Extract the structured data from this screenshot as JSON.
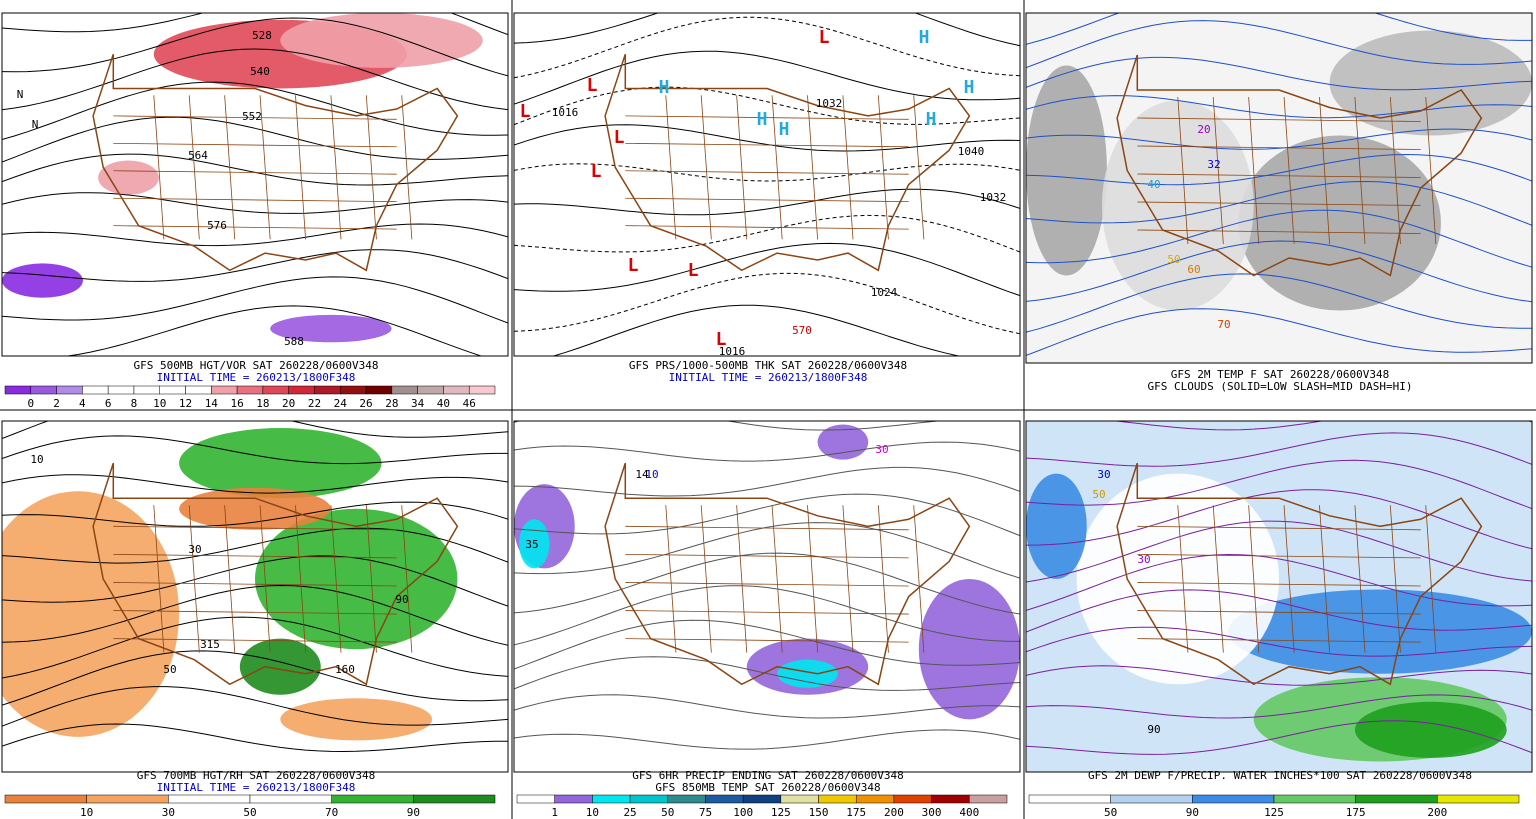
{
  "panels": [
    {
      "captions": [
        {
          "text": "GFS 500MB HGT/VOR SAT 260228/0600V348",
          "color": "#000000"
        },
        {
          "text": "INITIAL TIME = 260213/1800F348",
          "color": "#0000cc"
        }
      ],
      "legend": {
        "labels": [
          0,
          2,
          4,
          6,
          8,
          10,
          12,
          14,
          16,
          18,
          20,
          22,
          24,
          26,
          28,
          34,
          40,
          46
        ],
        "colors": [
          "#8a2be2",
          "#9b59e0",
          "#b08be8",
          "#ffffff",
          "#ffffff",
          "#ffffff",
          "#ffffff",
          "#ffffff",
          "#f0a0a8",
          "#e87080",
          "#e04858",
          "#d02838",
          "#b01828",
          "#901010",
          "#700000",
          "#a09090",
          "#c0a8a8",
          "#e0b8c0",
          "#f8c8d0"
        ]
      },
      "map_labels": [
        {
          "text": "528",
          "color": "#000000"
        },
        {
          "text": "540",
          "color": "#000000"
        },
        {
          "text": "552",
          "color": "#000000"
        },
        {
          "text": "564",
          "color": "#000000"
        },
        {
          "text": "576",
          "color": "#000000"
        },
        {
          "text": "588",
          "color": "#000000"
        },
        {
          "text": "N",
          "color": "#000000"
        },
        {
          "text": "N",
          "color": "#000000"
        }
      ]
    },
    {
      "captions": [
        {
          "text": "GFS PRS/1000-500MB THK SAT 260228/0600V348",
          "color": "#000000"
        },
        {
          "text": "INITIAL TIME = 260213/1800F348",
          "color": "#0000cc"
        }
      ],
      "map_labels": [
        {
          "text": "1016",
          "color": "#000000"
        },
        {
          "text": "1032",
          "color": "#000000"
        },
        {
          "text": "1040",
          "color": "#000000"
        },
        {
          "text": "1032",
          "color": "#000000"
        },
        {
          "text": "1024",
          "color": "#000000"
        },
        {
          "text": "1016",
          "color": "#000000"
        },
        {
          "text": "570",
          "color": "#cc0000"
        },
        {
          "text": "L",
          "color": "#dd0000"
        },
        {
          "text": "L",
          "color": "#dd0000"
        },
        {
          "text": "L",
          "color": "#dd0000"
        },
        {
          "text": "L",
          "color": "#dd0000"
        },
        {
          "text": "L",
          "color": "#dd0000"
        },
        {
          "text": "L",
          "color": "#dd0000"
        },
        {
          "text": "L",
          "color": "#dd0000"
        },
        {
          "text": "L",
          "color": "#dd0000"
        },
        {
          "text": "H",
          "color": "#22aadd"
        },
        {
          "text": "H",
          "color": "#22aadd"
        },
        {
          "text": "H",
          "color": "#22aadd"
        },
        {
          "text": "H",
          "color": "#22aadd"
        },
        {
          "text": "H",
          "color": "#22aadd"
        },
        {
          "text": "H",
          "color": "#22aadd"
        }
      ]
    },
    {
      "captions": [
        {
          "text": "GFS 2M TEMP F SAT 260228/0600V348",
          "color": "#000000"
        },
        {
          "text": "GFS CLOUDS (SOLID=LOW SLASH=MID DASH=HI)",
          "color": "#000000"
        }
      ],
      "map_labels": [
        {
          "text": "20",
          "color": "#9900cc"
        },
        {
          "text": "32",
          "color": "#0000cc"
        },
        {
          "text": "40",
          "color": "#00aadd"
        },
        {
          "text": "50",
          "color": "#ddaa00"
        },
        {
          "text": "60",
          "color": "#dd7700"
        },
        {
          "text": "70",
          "color": "#cc4400"
        }
      ]
    },
    {
      "captions": [
        {
          "text": "GFS 700MB HGT/RH SAT 260228/0600V348",
          "color": "#000000"
        },
        {
          "text": "INITIAL TIME = 260213/1800F348",
          "color": "#0000cc"
        }
      ],
      "legend": {
        "labels": [
          10,
          30,
          50,
          70,
          90
        ],
        "colors": [
          "#e8823e",
          "#f4a460",
          "#ffffff",
          "#ffffff",
          "#32b432",
          "#1e8c1e"
        ]
      },
      "map_labels": [
        {
          "text": "10",
          "color": "#000000"
        },
        {
          "text": "30",
          "color": "#000000"
        },
        {
          "text": "50",
          "color": "#000000"
        },
        {
          "text": "90",
          "color": "#000000"
        },
        {
          "text": "315",
          "color": "#000000"
        },
        {
          "text": "160",
          "color": "#000000"
        }
      ]
    },
    {
      "captions": [
        {
          "text": "GFS 6HR PRECIP ENDING SAT 260228/0600V348",
          "color": "#000000"
        },
        {
          "text": "GFS 850MB TEMP SAT 260228/0600V348",
          "color": "#000000"
        }
      ],
      "legend": {
        "labels": [
          1,
          10,
          25,
          50,
          75,
          100,
          125,
          150,
          175,
          200,
          300,
          400
        ],
        "colors": [
          "#ffffff",
          "#9466dc",
          "#00e5ee",
          "#00c5cd",
          "#2e8b8b",
          "#1e5aa0",
          "#104080",
          "#e0e0a0",
          "#f0c800",
          "#f09000",
          "#e04000",
          "#a00000",
          "#c8a0a0"
        ]
      },
      "map_labels": [
        {
          "text": "10",
          "color": "#0000cc"
        },
        {
          "text": "30",
          "color": "#cc00cc"
        },
        {
          "text": "14",
          "color": "#000000"
        },
        {
          "text": "35",
          "color": "#000000"
        }
      ]
    },
    {
      "captions": [
        {
          "text": "GFS 2M DEWP F/PRECIP. WATER INCHES*100 SAT 260228/0600V348",
          "color": "#000000"
        }
      ],
      "legend": {
        "labels": [
          50,
          90,
          125,
          175,
          200
        ],
        "colors": [
          "#ffffff",
          "#b4d2f0",
          "#3c8ce6",
          "#64c864",
          "#1ea01e",
          "#e6e600"
        ]
      },
      "map_labels": [
        {
          "text": "30",
          "color": "#0000cc"
        },
        {
          "text": "50",
          "color": "#cc9900"
        },
        {
          "text": "90",
          "color": "#000000"
        },
        {
          "text": "30",
          "color": "#9900cc"
        }
      ]
    }
  ]
}
